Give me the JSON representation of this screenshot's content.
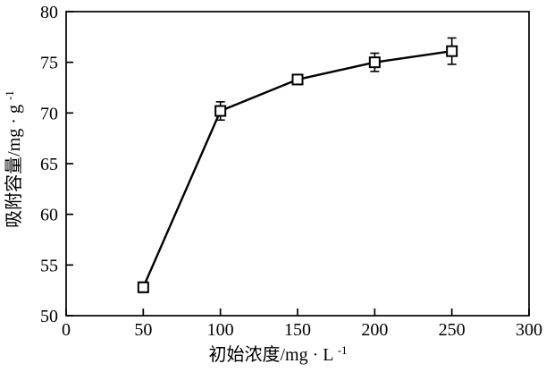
{
  "chart_data": {
    "type": "line",
    "x": [
      50,
      100,
      150,
      200,
      250
    ],
    "y": [
      52.8,
      70.2,
      73.3,
      75.0,
      76.1
    ],
    "yerr": [
      0.5,
      0.9,
      0.3,
      0.9,
      1.3
    ],
    "series_name": "吸附容量",
    "xlabel": "初始浓度/mg · L⁻¹",
    "ylabel": "吸附容量/mg · g⁻¹",
    "xlabel_parts": {
      "main": "初始浓度/mg · L",
      "sup": "-1"
    },
    "ylabel_parts": {
      "main": "吸附容量/mg · g",
      "sup": "-1"
    },
    "xlim": [
      0,
      300
    ],
    "ylim": [
      50,
      80
    ],
    "xticks": [
      0,
      50,
      100,
      150,
      200,
      250,
      300
    ],
    "yticks": [
      50,
      55,
      60,
      65,
      70,
      75,
      80
    ],
    "marker": "open-square",
    "line_color": "#000000",
    "marker_fill": "#ffffff",
    "background": "#ffffff",
    "grid": "off",
    "legend": "none",
    "frame": "full-box",
    "tick_direction": "in"
  }
}
